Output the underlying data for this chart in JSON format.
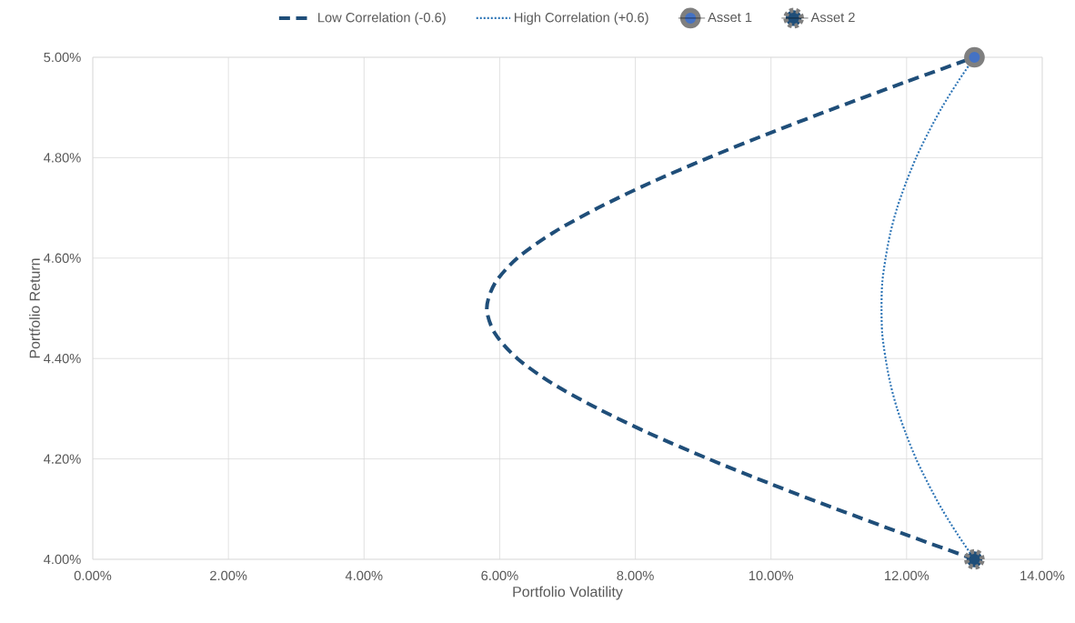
{
  "chart_data": {
    "type": "line",
    "xlabel": "Portfolio Volatility",
    "ylabel": "Portfolio Return",
    "xlim": [
      0,
      14
    ],
    "ylim": [
      4,
      5
    ],
    "xticks": [
      {
        "value": 0,
        "label": "0.00%"
      },
      {
        "value": 2,
        "label": "2.00%"
      },
      {
        "value": 4,
        "label": "4.00%"
      },
      {
        "value": 6,
        "label": "6.00%"
      },
      {
        "value": 8,
        "label": "8.00%"
      },
      {
        "value": 10,
        "label": "10.00%"
      },
      {
        "value": 12,
        "label": "12.00%"
      },
      {
        "value": 14,
        "label": "14.00%"
      }
    ],
    "yticks": [
      {
        "value": 4,
        "label": "4.00%"
      },
      {
        "value": 4.2,
        "label": "4.20%"
      },
      {
        "value": 4.4,
        "label": "4.40%"
      },
      {
        "value": 4.6,
        "label": "4.60%"
      },
      {
        "value": 4.8,
        "label": "4.80%"
      },
      {
        "value": 5,
        "label": "5.00%"
      }
    ],
    "grid": true,
    "legend": "top",
    "series": [
      {
        "name": "Low Correlation (-0.6)",
        "line_style": "dashed",
        "marker": "none",
        "color": "#1f4e79",
        "x": [
          13,
          11.97,
          10.97,
          10.0,
          9.08,
          8.22,
          7.45,
          6.78,
          6.26,
          5.93,
          5.81,
          5.93,
          6.26,
          6.78,
          7.45,
          8.22,
          9.08,
          10.0,
          10.97,
          11.97,
          13
        ],
        "values": [
          4.0,
          4.05,
          4.1,
          4.15,
          4.2,
          4.25,
          4.3,
          4.35,
          4.4,
          4.45,
          4.5,
          4.55,
          4.6,
          4.65,
          4.7,
          4.75,
          4.8,
          4.85,
          4.9,
          4.95,
          5.0
        ]
      },
      {
        "name": "High Correlation (+0.6)",
        "line_style": "dotted",
        "marker": "none",
        "color": "#2e75b6",
        "x": [
          13,
          12.75,
          12.52,
          12.32,
          12.14,
          11.99,
          11.86,
          11.76,
          11.69,
          11.64,
          11.63,
          11.64,
          11.69,
          11.76,
          11.86,
          11.99,
          12.14,
          12.32,
          12.52,
          12.75,
          13
        ],
        "values": [
          4.0,
          4.05,
          4.1,
          4.15,
          4.2,
          4.25,
          4.3,
          4.35,
          4.4,
          4.45,
          4.5,
          4.55,
          4.6,
          4.65,
          4.7,
          4.75,
          4.8,
          4.85,
          4.9,
          4.95,
          5.0
        ]
      },
      {
        "name": "Asset 1",
        "type": "scatter",
        "marker": "circle",
        "line_style": "solid",
        "color": "#4472c4",
        "x": [
          13
        ],
        "values": [
          5.0
        ]
      },
      {
        "name": "Asset 2",
        "type": "scatter",
        "marker": "circle",
        "line_style": "dashed",
        "color": "#1f4e79",
        "x": [
          13
        ],
        "values": [
          4.0
        ]
      }
    ]
  }
}
